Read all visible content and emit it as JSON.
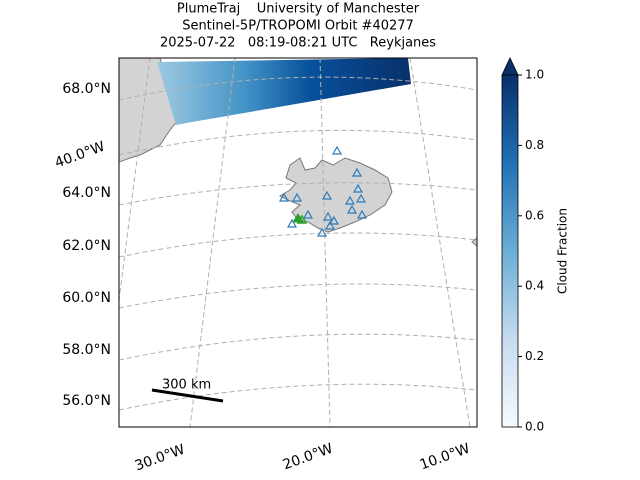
{
  "title": {
    "lines": [
      "PlumeTraj    University of Manchester",
      "Sentinel-5P/TROPOMI Orbit #40277",
      "2025-07-22   08:19-08:21 UTC   Reykjanes"
    ]
  },
  "map": {
    "lat_labels": [
      "68.0°N",
      "64.0°N",
      "62.0°N",
      "60.0°N",
      "58.0°N",
      "56.0°N"
    ],
    "lon_labels": [
      "40.0°W",
      "30.0°W",
      "20.0°W",
      "10.0°W"
    ],
    "scale_label": "300 km"
  },
  "colorbar": {
    "label": "Cloud Fraction",
    "lim": [
      0,
      1
    ],
    "ticks": [
      {
        "value": 0,
        "label": "0.0"
      },
      {
        "value": 0.2,
        "label": "0.2"
      },
      {
        "value": 0.4,
        "label": "0.4"
      },
      {
        "value": 0.6,
        "label": "0.6"
      },
      {
        "value": 0.8,
        "label": "0.8"
      },
      {
        "value": 1,
        "label": "1.0"
      }
    ]
  }
}
